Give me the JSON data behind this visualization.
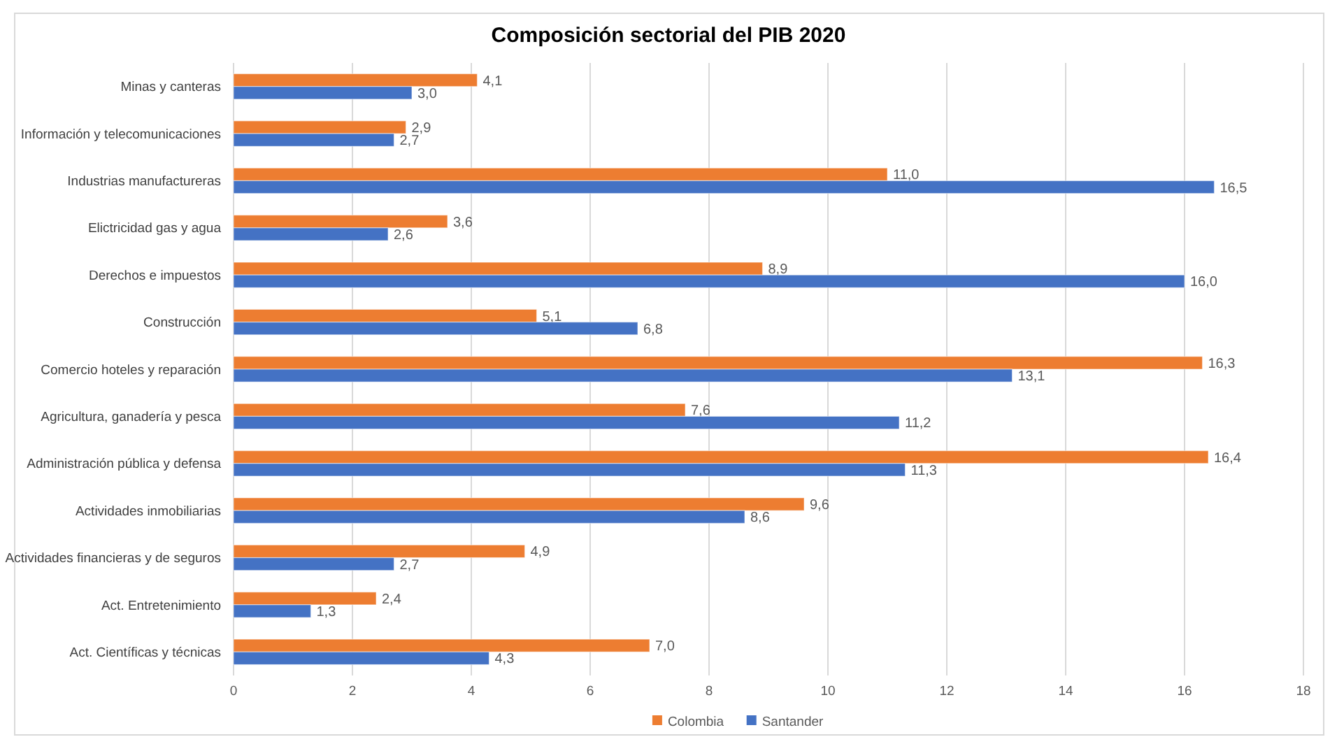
{
  "chart_data": {
    "type": "bar",
    "orientation": "horizontal",
    "title": "Composición sectorial del PIB 2020",
    "categories": [
      "Minas y canteras",
      "Información y telecomunicaciones",
      "Industrias manufactureras",
      "Elictricidad gas y agua",
      "Derechos e impuestos",
      "Construcción",
      "Comercio hoteles y reparación",
      "Agricultura, ganadería y pesca",
      "Administración pública y defensa",
      "Actividades inmobiliarias",
      "Actividades financieras y de seguros",
      "Act. Entretenimiento",
      "Act. Científicas y técnicas"
    ],
    "series": [
      {
        "name": "Colombia",
        "color": "#ed7d31",
        "values": [
          4.1,
          2.9,
          11.0,
          3.6,
          8.9,
          5.1,
          16.3,
          7.6,
          16.4,
          9.6,
          4.9,
          2.4,
          7.0
        ],
        "value_labels": [
          "4,1",
          "2,9",
          "11,0",
          "3,6",
          "8,9",
          "5,1",
          "16,3",
          "7,6",
          "16,4",
          "9,6",
          "4,9",
          "2,4",
          "7,0"
        ]
      },
      {
        "name": "Santander",
        "color": "#4472c4",
        "values": [
          3.0,
          2.7,
          16.5,
          2.6,
          16.0,
          6.8,
          13.1,
          11.2,
          11.3,
          8.6,
          2.7,
          1.3,
          4.3
        ],
        "value_labels": [
          "3,0",
          "2,7",
          "16,5",
          "2,6",
          "16,0",
          "6,8",
          "13,1",
          "11,2",
          "11,3",
          "8,6",
          "2,7",
          "1,3",
          "4,3"
        ]
      }
    ],
    "xlim": [
      0,
      18
    ],
    "xticks": [
      0,
      2,
      4,
      6,
      8,
      10,
      12,
      14,
      16,
      18
    ],
    "grid": "x",
    "legend": "bottom"
  }
}
